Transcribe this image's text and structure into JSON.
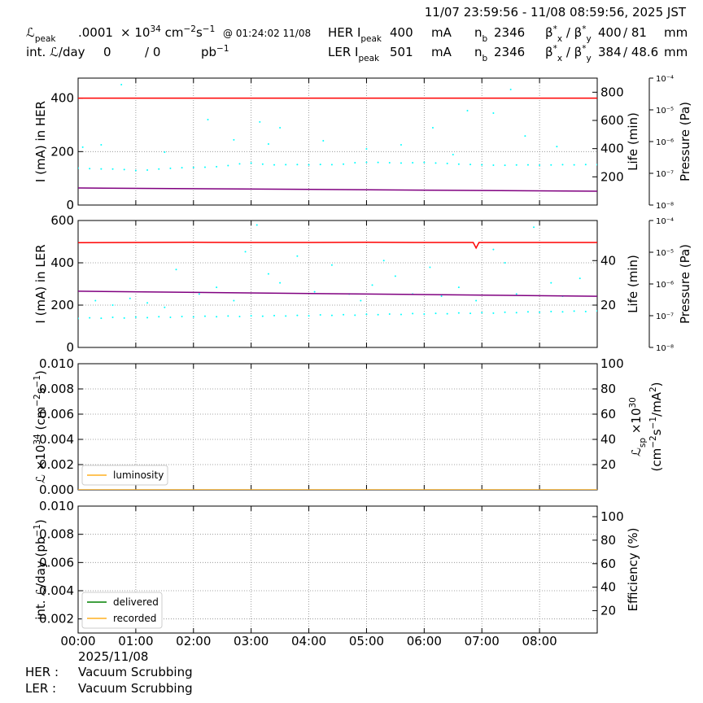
{
  "header": {
    "time_range": "11/07 23:59:56 - 11/08 08:59:56, 2025 JST",
    "lpeak_label": [
      "ℒ",
      "peak"
    ],
    "lpeak_value": ".0001",
    "lpeak_unit": [
      "× 10",
      "34",
      " cm",
      "−2",
      "s",
      "−1"
    ],
    "lpeak_time": "@ 01:24:02 11/08",
    "intl_label": "int. ℒ/day",
    "intl_delivered": "0",
    "intl_recorded": "/ 0",
    "intl_unit": [
      "pb",
      "−1"
    ],
    "her": {
      "label": [
        "HER I",
        "peak"
      ],
      "current": "400",
      "unit": "mA",
      "nb_label": [
        "n",
        "b"
      ],
      "nb": "2346",
      "beta_label": [
        "β",
        "*",
        "x",
        " / β",
        "*",
        "y"
      ],
      "beta_x": "400",
      "beta_y": "/ 81",
      "beta_unit": "mm"
    },
    "ler": {
      "label": [
        "LER I",
        "peak"
      ],
      "current": "501",
      "unit": "mA",
      "nb_label": [
        "n",
        "b"
      ],
      "nb": "2346",
      "beta_label": [
        "β",
        "*",
        "x",
        " / β",
        "*",
        "y"
      ],
      "beta_x": "384",
      "beta_y": "/ 48.6",
      "beta_unit": "mm"
    }
  },
  "footer": {
    "date": "2025/11/08",
    "her_label": "HER :",
    "her_status": "Vacuum Scrubbing",
    "ler_label": "LER :",
    "ler_status": "Vacuum Scrubbing"
  },
  "chart_data": [
    {
      "type": "scatter",
      "ylabel": "I (mA) in HER",
      "y2label": "Life (min)",
      "y3label": "Pressure (Pa)",
      "xlim": [
        0,
        9
      ],
      "ylim": [
        0,
        475
      ],
      "yticks": [
        0,
        200,
        400
      ],
      "y2lim": [
        0,
        900
      ],
      "y2ticks": [
        200,
        400,
        600,
        800
      ],
      "y3lim": [
        1e-08,
        0.0001
      ],
      "y3log": true,
      "y3ticks": [
        {
          "value": 1e-08,
          "label": "10⁻⁸"
        },
        {
          "value": 1e-07,
          "label": "10⁻⁷"
        },
        {
          "value": 1e-06,
          "label": "10⁻⁶"
        },
        {
          "value": 1e-05,
          "label": "10⁻⁵"
        },
        {
          "value": 0.0001,
          "label": "10⁻⁴"
        }
      ],
      "grid": true,
      "series": [
        {
          "color": "#ff0000",
          "mode": "line",
          "x": [
            0,
            1,
            2,
            3,
            4,
            5,
            6,
            7,
            8,
            9
          ],
          "values": [
            400,
            400,
            400,
            400,
            400,
            400,
            400,
            400,
            400,
            400
          ]
        },
        {
          "color": "#00ffff",
          "mode": "markers",
          "axis": "y2",
          "x": [
            0,
            0.2,
            0.4,
            0.6,
            0.8,
            1,
            1.2,
            1.4,
            1.6,
            1.8,
            2,
            2.2,
            2.4,
            2.6,
            2.8,
            3,
            3.2,
            3.4,
            3.6,
            3.8,
            4,
            4.2,
            4.4,
            4.6,
            4.8,
            5,
            5.2,
            5.4,
            5.6,
            5.8,
            6,
            6.2,
            6.4,
            6.6,
            6.8,
            7,
            7.2,
            7.4,
            7.6,
            7.8,
            8,
            8.2,
            8.4,
            8.6,
            8.8,
            9,
            0.08,
            0.4,
            0.75,
            1.5,
            2.25,
            2.7,
            3.15,
            3.3,
            3.5,
            4.25,
            5,
            5.6,
            6.15,
            6.5,
            6.75,
            7.2,
            7.5,
            7.75,
            8.3
          ],
          "values": [
            262,
            258,
            256,
            255,
            252,
            245,
            248,
            255,
            260,
            265,
            266,
            268,
            272,
            280,
            292,
            298,
            290,
            285,
            286,
            287,
            285,
            288,
            286,
            290,
            300,
            303,
            302,
            300,
            298,
            300,
            302,
            298,
            295,
            290,
            288,
            285,
            283,
            282,
            284,
            285,
            283,
            284,
            286,
            285,
            287,
            286,
            410,
            427,
            854,
            375,
            606,
            462,
            589,
            433,
            548,
            456,
            398,
            427,
            548,
            358,
            669,
            652,
            819,
            490,
            415
          ]
        },
        {
          "color": "#800080",
          "mode": "line",
          "axis": "y3",
          "x": [
            0,
            9
          ],
          "values": [
            3.45e-08,
            2.73e-08
          ]
        }
      ]
    },
    {
      "type": "scatter",
      "ylabel": "I (mA) in LER",
      "y2label": "Life (min)",
      "y3label": "Pressure (Pa)",
      "xlim": [
        0,
        9
      ],
      "ylim": [
        0,
        600
      ],
      "yticks": [
        0,
        200,
        400,
        600
      ],
      "y2lim": [
        1,
        58
      ],
      "y2ticks": [
        20,
        40
      ],
      "y3lim": [
        1e-08,
        0.0001
      ],
      "y3log": true,
      "y3ticks": [
        {
          "value": 1e-08,
          "label": "10⁻⁸"
        },
        {
          "value": 1e-07,
          "label": "10⁻⁷"
        },
        {
          "value": 1e-06,
          "label": "10⁻⁶"
        },
        {
          "value": 1e-05,
          "label": "10⁻⁵"
        },
        {
          "value": 0.0001,
          "label": "10⁻⁴"
        }
      ],
      "grid": true,
      "series": [
        {
          "color": "#ff0000",
          "mode": "line",
          "x": [
            0,
            1,
            2,
            3,
            4,
            5,
            6,
            6.85,
            6.9,
            6.95,
            7,
            8,
            9
          ],
          "values": [
            495,
            496,
            497,
            496,
            496,
            497,
            496,
            496,
            470,
            496,
            496,
            496,
            496
          ]
        },
        {
          "color": "#00ffff",
          "mode": "markers",
          "axis": "y2",
          "x": [
            0,
            0.2,
            0.4,
            0.6,
            0.8,
            1,
            1.2,
            1.4,
            1.6,
            1.8,
            2,
            2.2,
            2.4,
            2.6,
            2.8,
            3,
            3.2,
            3.4,
            3.6,
            3.8,
            4,
            4.2,
            4.4,
            4.6,
            4.8,
            5,
            5.2,
            5.4,
            5.6,
            5.8,
            6,
            6.2,
            6.4,
            6.6,
            6.8,
            7,
            7.2,
            7.4,
            7.6,
            7.8,
            8,
            8.2,
            8.4,
            8.6,
            8.8,
            9,
            0.3,
            0.6,
            0.9,
            1.2,
            1.5,
            1.7,
            2.1,
            2.4,
            2.7,
            2.9,
            3.1,
            3.3,
            3.5,
            3.8,
            4.1,
            4.4,
            4.7,
            4.9,
            5.1,
            5.3,
            5.5,
            5.8,
            6.1,
            6.3,
            6.6,
            6.9,
            7.2,
            7.4,
            7.6,
            7.9,
            8.2,
            8.4,
            8.7
          ],
          "values": [
            14.0,
            14.3,
            14.1,
            14.5,
            14.2,
            14.6,
            14.4,
            14.8,
            14.5,
            14.9,
            14.7,
            15.0,
            14.8,
            15.1,
            14.9,
            15.2,
            15.0,
            15.3,
            15.1,
            15.4,
            15.2,
            15.6,
            15.4,
            15.7,
            15.5,
            15.9,
            15.7,
            16.0,
            15.8,
            16.2,
            16.0,
            16.3,
            16.1,
            16.5,
            16.3,
            16.6,
            16.4,
            16.8,
            16.6,
            17.0,
            16.8,
            17.1,
            17.0,
            17.3,
            17.1,
            17.4,
            22,
            20,
            23,
            21,
            19,
            36,
            25,
            28,
            22,
            44,
            56,
            34,
            30,
            42,
            26,
            38,
            25,
            22,
            29,
            40,
            33,
            25,
            37,
            24,
            28,
            22,
            45,
            39,
            25,
            55,
            30,
            24,
            32
          ]
        },
        {
          "color": "#800080",
          "mode": "line",
          "axis": "y3",
          "x": [
            0,
            9
          ],
          "values": [
            5.9e-07,
            4.1e-07
          ]
        }
      ]
    },
    {
      "type": "line",
      "ylabel": [
        "ℒ ×10",
        "34",
        " (cm",
        "−2",
        "s",
        "−1",
        ")"
      ],
      "y2label": [
        "ℒ",
        "sp",
        " ×10",
        "30"
      ],
      "y2label2": [
        "(cm",
        "−2",
        "s",
        "−1",
        "/mA",
        "2",
        ")"
      ],
      "xlim": [
        0,
        9
      ],
      "ylim": [
        0,
        0.01
      ],
      "yticks": [
        {
          "value": 0,
          "label": "0.000"
        },
        0.002,
        0.004,
        0.006,
        0.008,
        {
          "value": 0.01,
          "label": "0.010"
        }
      ],
      "y2lim": [
        0,
        100
      ],
      "y2ticks": [
        20,
        40,
        60,
        80,
        100
      ],
      "grid": true,
      "legend": "lower left",
      "series": [
        {
          "name": "luminosity",
          "color": "#ffb020",
          "x": [
            0,
            9
          ],
          "values": [
            0,
            0
          ]
        }
      ]
    },
    {
      "type": "line",
      "ylabel": [
        "int. ℒ/day (pb",
        "−1",
        ")"
      ],
      "y2label": "Efficiency (%)",
      "xlim": [
        0,
        9
      ],
      "xticks": [
        {
          "value": 0,
          "label": "00:00"
        },
        {
          "value": 1,
          "label": "01:00"
        },
        {
          "value": 2,
          "label": "02:00"
        },
        {
          "value": 3,
          "label": "03:00"
        },
        {
          "value": 4,
          "label": "04:00"
        },
        {
          "value": 5,
          "label": "05:00"
        },
        {
          "value": 6,
          "label": "06:00"
        },
        {
          "value": 7,
          "label": "07:00"
        },
        {
          "value": 8,
          "label": "08:00"
        }
      ],
      "ylim": [
        0.001,
        0.01
      ],
      "yticks": [
        0.002,
        0.004,
        0.006,
        0.008,
        {
          "value": 0.01,
          "label": "0.010"
        }
      ],
      "y2lim": [
        1,
        109
      ],
      "y2ticks": [
        20,
        40,
        60,
        80,
        100
      ],
      "grid": true,
      "legend": "lower left",
      "series": [
        {
          "name": "delivered",
          "color": "#008000",
          "x": [
            0,
            9
          ],
          "values": [
            0,
            0
          ]
        },
        {
          "name": "recorded",
          "color": "#ffb020",
          "x": [
            0,
            9
          ],
          "values": [
            0,
            0
          ]
        }
      ]
    }
  ]
}
